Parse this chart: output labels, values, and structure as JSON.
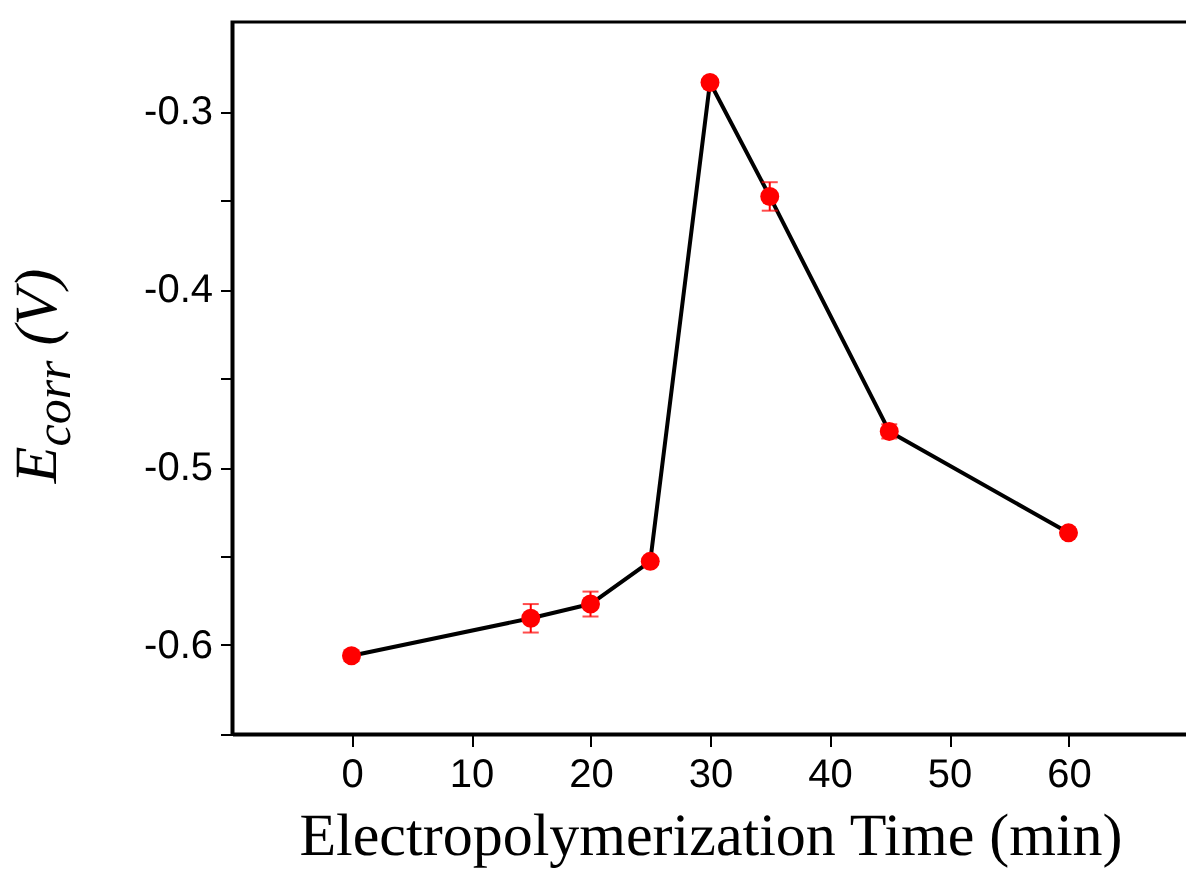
{
  "chart_data": {
    "type": "line",
    "xlabel": "Electropolymerization Time (min)",
    "ylabel": "E$_{corr}$ (V)",
    "x": [
      0,
      15,
      20,
      25,
      30,
      35,
      45,
      60
    ],
    "series": [
      {
        "color": "#ff0000",
        "values": [
          -0.606,
          -0.585,
          -0.577,
          -0.553,
          -0.284,
          -0.348,
          -0.48,
          -0.537
        ],
        "errors": [
          0.003,
          0.008,
          0.007,
          0.002,
          0.002,
          0.008,
          0.004,
          0.002
        ]
      }
    ],
    "xlim": [
      -10,
      70
    ],
    "xticks": [
      0,
      10,
      20,
      30,
      40,
      50,
      60
    ],
    "ylim": [
      -0.65,
      -0.25
    ],
    "yticks": [
      {
        "value": -0.65,
        "label": null
      },
      -0.6,
      {
        "value": -0.55,
        "label": null
      },
      -0.5,
      {
        "value": -0.45,
        "label": null
      },
      -0.4,
      {
        "value": -0.35,
        "label": null
      },
      -0.3
    ],
    "marker": "circle",
    "line_style": "solid",
    "grid": false
  }
}
